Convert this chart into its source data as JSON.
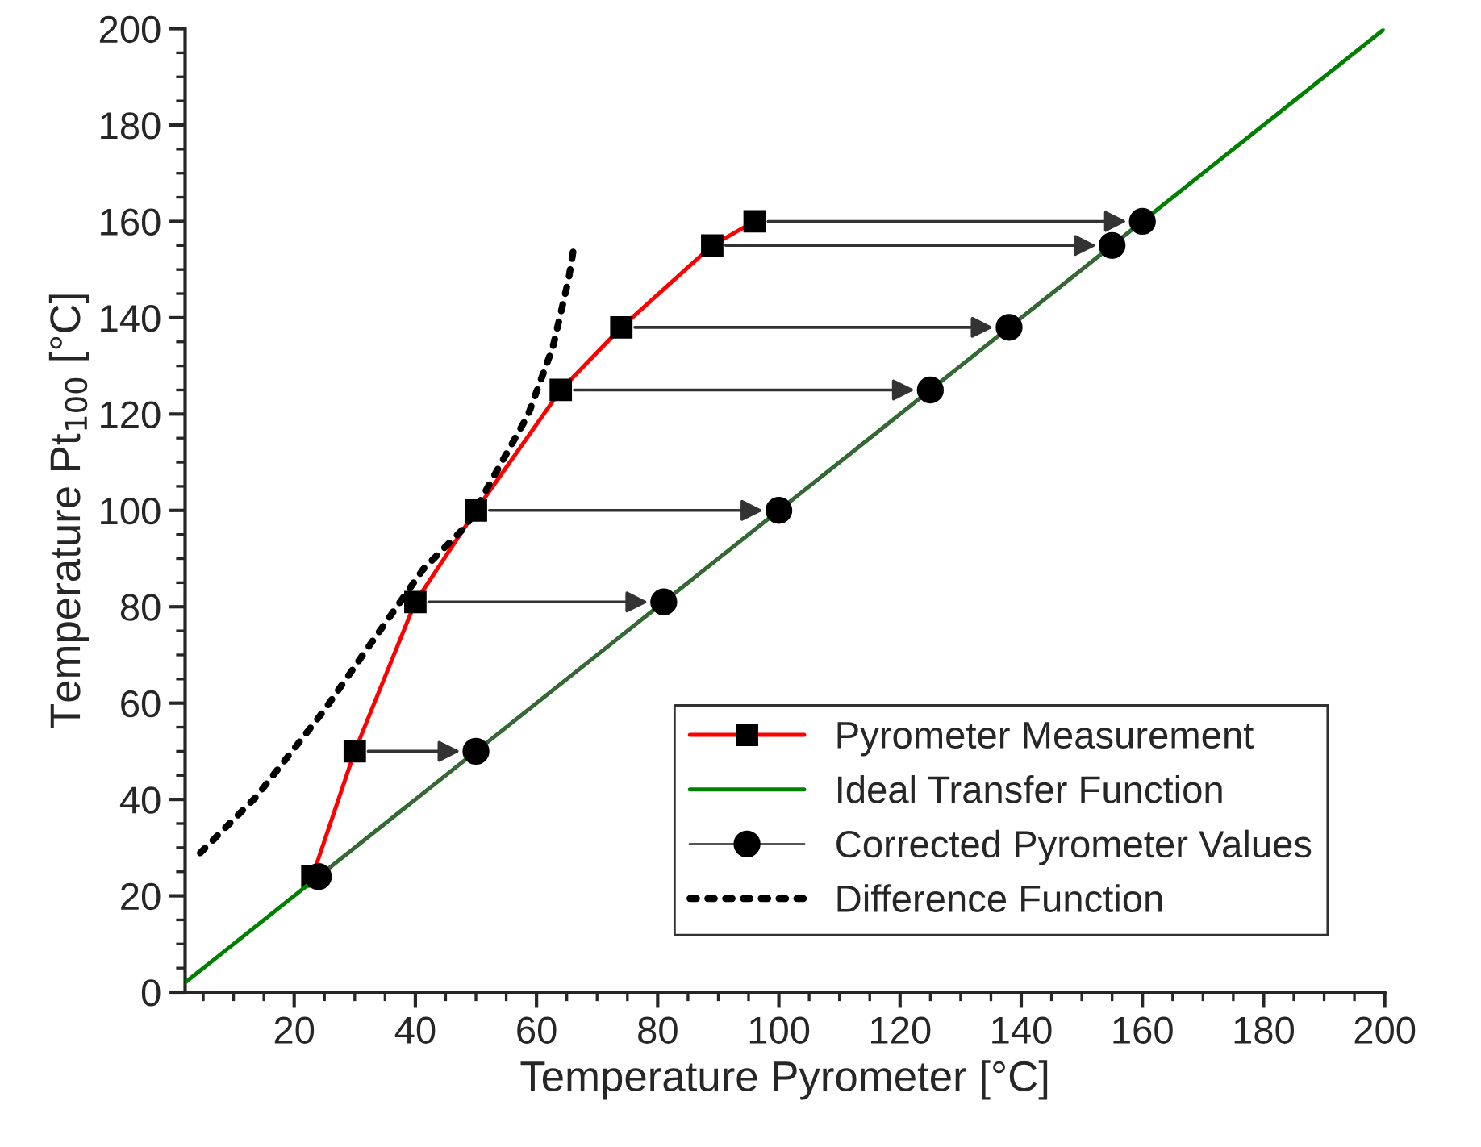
{
  "chart_data": {
    "type": "line",
    "xlabel": "Temperature Pyrometer [°C]",
    "ylabel": "Temperature Pt$_{100}$ [°C]",
    "xlim": [
      2,
      200
    ],
    "ylim": [
      0,
      200
    ],
    "xticks": [
      20,
      40,
      60,
      80,
      100,
      120,
      140,
      160,
      180,
      200
    ],
    "yticks": [
      0,
      20,
      40,
      60,
      80,
      100,
      120,
      140,
      160,
      180,
      200
    ],
    "grid": false,
    "legend": "bottom right",
    "series": [
      {
        "name": "Pyrometer Measurement",
        "color": "#ff0000",
        "marker": "square",
        "line_style": "solid",
        "x": [
          23,
          30,
          40,
          50,
          64,
          74,
          89,
          96
        ],
        "values": [
          24,
          50,
          81,
          100,
          125,
          138,
          155,
          160
        ]
      },
      {
        "name": "Ideal Transfer Function",
        "color": "#008000",
        "marker": "none",
        "line_style": "solid",
        "x": [
          2,
          200
        ],
        "values": [
          2,
          200
        ]
      },
      {
        "name": "Corrected Pyrometer Values",
        "color": "#000000",
        "marker": "circle",
        "line_style": "solid",
        "x": [
          24,
          50,
          81,
          100,
          125,
          138,
          155,
          160
        ],
        "values": [
          24,
          50,
          81,
          100,
          125,
          138,
          155,
          160
        ]
      },
      {
        "name": "Difference Function",
        "color": "#000000",
        "marker": "none",
        "line_style": "dotted",
        "x": [
          4.5,
          13.7,
          24.9,
          32.0,
          41.3,
          48.4,
          58.6,
          62.7,
          65.3,
          66.3
        ],
        "values": [
          28.9,
          40.5,
          58.4,
          71.2,
          87.8,
          96.8,
          119.8,
          133.9,
          148,
          155.7
        ]
      }
    ]
  }
}
